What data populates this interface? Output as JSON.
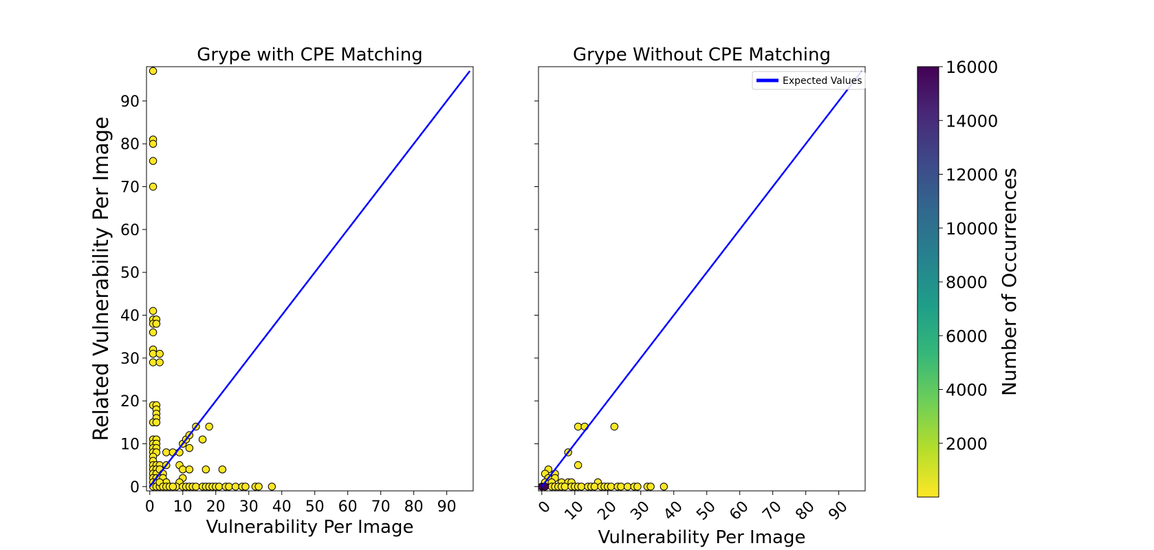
{
  "chart_data": [
    {
      "type": "scatter",
      "title": "Grype with CPE Matching",
      "xlabel": "Vulnerability Per Image",
      "ylabel": "Related Vulnerability Per Image",
      "xlim": [
        -1,
        98
      ],
      "ylim": [
        -1,
        98
      ],
      "xticks": [
        0,
        10,
        20,
        30,
        40,
        50,
        60,
        70,
        80,
        90
      ],
      "yticks": [
        0,
        10,
        20,
        30,
        40,
        50,
        60,
        70,
        80,
        90
      ],
      "xtick_rotation": 0,
      "grid": false,
      "series": [
        {
          "type": "scatter",
          "color": "#fde725",
          "edge_color": "#000000",
          "points": [
            [
              1,
              97
            ],
            [
              1,
              81
            ],
            [
              1,
              80
            ],
            [
              1,
              76
            ],
            [
              1,
              70
            ],
            [
              1,
              41
            ],
            [
              1,
              39
            ],
            [
              2,
              39
            ],
            [
              1,
              38
            ],
            [
              2,
              38
            ],
            [
              1,
              36
            ],
            [
              1,
              32
            ],
            [
              1,
              31
            ],
            [
              3,
              31
            ],
            [
              1,
              29
            ],
            [
              3,
              29
            ],
            [
              1,
              19
            ],
            [
              2,
              19
            ],
            [
              2,
              18
            ],
            [
              2,
              17
            ],
            [
              2,
              16
            ],
            [
              1,
              15
            ],
            [
              2,
              15
            ],
            [
              1,
              11
            ],
            [
              2,
              11
            ],
            [
              1,
              10
            ],
            [
              2,
              10
            ],
            [
              1,
              9
            ],
            [
              2,
              9
            ],
            [
              1,
              8
            ],
            [
              2,
              8
            ],
            [
              1,
              7
            ],
            [
              1,
              6
            ],
            [
              1,
              5
            ],
            [
              2,
              5
            ],
            [
              3,
              5
            ],
            [
              1,
              4
            ],
            [
              2,
              4
            ],
            [
              1,
              3
            ],
            [
              2,
              3
            ],
            [
              1,
              2
            ],
            [
              2,
              2
            ],
            [
              1,
              1
            ],
            [
              2,
              1
            ],
            [
              1,
              0
            ],
            [
              2,
              0
            ],
            [
              3,
              0
            ],
            [
              3,
              4
            ],
            [
              4,
              3
            ],
            [
              3,
              2
            ],
            [
              4,
              2
            ],
            [
              5,
              1
            ],
            [
              3,
              1
            ],
            [
              5,
              5
            ],
            [
              5,
              8
            ],
            [
              7,
              8
            ],
            [
              9,
              8
            ],
            [
              10,
              10
            ],
            [
              11,
              11
            ],
            [
              12,
              12
            ],
            [
              14,
              14
            ],
            [
              12,
              9
            ],
            [
              16,
              11
            ],
            [
              18,
              14
            ],
            [
              9,
              5
            ],
            [
              10,
              4
            ],
            [
              12,
              4
            ],
            [
              17,
              4
            ],
            [
              22,
              4
            ],
            [
              10,
              2
            ],
            [
              9,
              1
            ],
            [
              8,
              0
            ],
            [
              4,
              0
            ],
            [
              5,
              0
            ],
            [
              6,
              0
            ],
            [
              7,
              0
            ],
            [
              10,
              0
            ],
            [
              11,
              0
            ],
            [
              12,
              0
            ],
            [
              13,
              0
            ],
            [
              14,
              0
            ],
            [
              16,
              0
            ],
            [
              17,
              0
            ],
            [
              18,
              0
            ],
            [
              19,
              0
            ],
            [
              20,
              0
            ],
            [
              21,
              0
            ],
            [
              23,
              0
            ],
            [
              24,
              0
            ],
            [
              26,
              0
            ],
            [
              28,
              0
            ],
            [
              29,
              0
            ],
            [
              32,
              0
            ],
            [
              33,
              0
            ],
            [
              37,
              0
            ]
          ]
        },
        {
          "type": "line",
          "name": "Expected Values",
          "color": "#0000ff",
          "x": [
            0,
            97
          ],
          "y": [
            0,
            97
          ]
        }
      ]
    },
    {
      "type": "scatter",
      "title": "Grype Without CPE Matching",
      "xlabel": "Vulnerability Per Image",
      "ylabel": "",
      "xlim": [
        -1,
        98
      ],
      "ylim": [
        -1,
        98
      ],
      "xticks": [
        0,
        10,
        20,
        30,
        40,
        50,
        60,
        70,
        80,
        90
      ],
      "yticks": [
        0,
        10,
        20,
        30,
        40,
        50,
        60,
        70,
        80,
        90
      ],
      "show_ytick_labels": false,
      "xtick_rotation": 45,
      "grid": false,
      "legend": {
        "position": "top-right",
        "entries": [
          "Expected Values"
        ]
      },
      "series": [
        {
          "type": "scatter",
          "color": "#fde725",
          "edge_color": "#000000",
          "points": [
            [
              2,
              4
            ],
            [
              1,
              3
            ],
            [
              4,
              3
            ],
            [
              2,
              2
            ],
            [
              4,
              2
            ],
            [
              1,
              1
            ],
            [
              3,
              1
            ],
            [
              6,
              1
            ],
            [
              8,
              1
            ],
            [
              9,
              1
            ],
            [
              17,
              1
            ],
            [
              3,
              0
            ],
            [
              4,
              0
            ],
            [
              5,
              0
            ],
            [
              6,
              0
            ],
            [
              7,
              0
            ],
            [
              9,
              0
            ],
            [
              10,
              0
            ],
            [
              11,
              0
            ],
            [
              12,
              0
            ],
            [
              14,
              0
            ],
            [
              15,
              0
            ],
            [
              16,
              0
            ],
            [
              18,
              0
            ],
            [
              19,
              0
            ],
            [
              20,
              0
            ],
            [
              21,
              0
            ],
            [
              23,
              0
            ],
            [
              24,
              0
            ],
            [
              26,
              0
            ],
            [
              28,
              0
            ],
            [
              29,
              0
            ],
            [
              32,
              0
            ],
            [
              33,
              0
            ],
            [
              37,
              0
            ],
            [
              8,
              8
            ],
            [
              11,
              14
            ],
            [
              13,
              14
            ],
            [
              22,
              14
            ],
            [
              11,
              5
            ]
          ]
        },
        {
          "type": "scatter",
          "color": "#440154",
          "edge_color": "#000000",
          "points": [
            [
              0,
              0
            ],
            [
              1,
              0
            ]
          ]
        },
        {
          "type": "line",
          "name": "Expected Values",
          "color": "#0000ff",
          "x": [
            0,
            97
          ],
          "y": [
            0,
            97
          ]
        }
      ]
    },
    {
      "type": "colorbar",
      "label": "Number of Occurrences",
      "range": [
        0,
        16000
      ],
      "ticks": [
        2000,
        4000,
        6000,
        8000,
        10000,
        12000,
        14000,
        16000
      ],
      "colormap": "viridis_r",
      "colors": [
        "#440154",
        "#482878",
        "#3e4989",
        "#31688e",
        "#26828e",
        "#1f9e89",
        "#35b779",
        "#6ece58",
        "#b5de2b",
        "#fde725"
      ]
    }
  ]
}
